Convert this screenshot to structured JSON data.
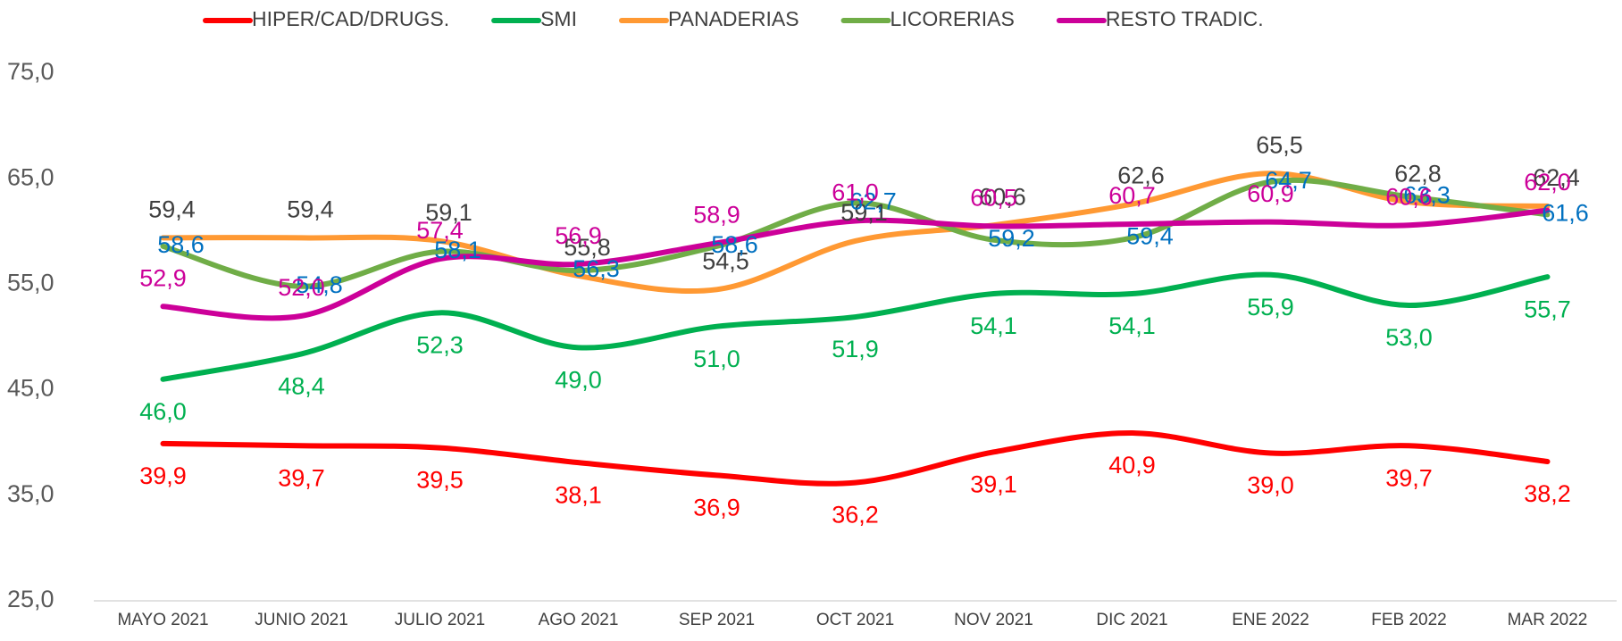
{
  "chart_data": {
    "type": "line",
    "categories": [
      "MAYO 2021",
      "JUNIO 2021",
      "JULIO 2021",
      "AGO 2021",
      "SEP 2021",
      "OCT 2021",
      "NOV 2021",
      "DIC 2021",
      "ENE 2022",
      "FEB 2022",
      "MAR 2022"
    ],
    "ylim": [
      25,
      75
    ],
    "yticks": [
      {
        "value": 25,
        "label": "25,0"
      },
      {
        "value": 35,
        "label": "35,0"
      },
      {
        "value": 45,
        "label": "45,0"
      },
      {
        "value": 55,
        "label": "55,0"
      },
      {
        "value": 65,
        "label": "65,0"
      },
      {
        "value": 75,
        "label": "75,0"
      }
    ],
    "grid": false,
    "legend": "top",
    "series": [
      {
        "name": "HIPER/CAD/DRUGS.",
        "color": "#ff0000",
        "label_color": "#ff0000",
        "values": [
          39.9,
          39.7,
          39.5,
          38.1,
          36.9,
          36.2,
          39.1,
          40.9,
          39.0,
          39.7,
          38.2
        ],
        "value_labels": [
          "39,9",
          "39,7",
          "39,5",
          "38,1",
          "36,9",
          "36,2",
          "39,1",
          "40,9",
          "39,0",
          "39,7",
          "38,2"
        ]
      },
      {
        "name": "SMI",
        "color": "#00b050",
        "label_color": "#00b050",
        "values": [
          46.0,
          48.4,
          52.3,
          49.0,
          51.0,
          51.9,
          54.1,
          54.1,
          55.9,
          53.0,
          55.7
        ],
        "value_labels": [
          "46,0",
          "48,4",
          "52,3",
          "49,0",
          "51,0",
          "51,9",
          "54,1",
          "54,1",
          "55,9",
          "53,0",
          "55,7"
        ]
      },
      {
        "name": "PANADERIAS",
        "color": "#ff9933",
        "label_color": "#404040",
        "values": [
          59.4,
          59.4,
          59.1,
          55.8,
          54.5,
          59.1,
          60.6,
          62.6,
          65.5,
          62.8,
          62.4
        ],
        "value_labels": [
          "59,4",
          "59,4",
          "59,1",
          "55,8",
          "54,5",
          "59,1",
          "60,6",
          "62,6",
          "65,5",
          "62,8",
          "62,4"
        ]
      },
      {
        "name": "LICORERIAS",
        "color": "#70ad47",
        "label_color": "#0070c0",
        "values": [
          58.6,
          54.8,
          58.1,
          56.3,
          58.6,
          62.7,
          59.2,
          59.4,
          64.7,
          63.3,
          61.6
        ],
        "value_labels": [
          "58,6",
          "54,8",
          "58,1",
          "56,3",
          "58,6",
          "62,7",
          "59,2",
          "59,4",
          "64,7",
          "63,3",
          "61,6"
        ]
      },
      {
        "name": "RESTO TRADIC.",
        "color": "#cc0099",
        "label_color": "#cc0099",
        "values": [
          52.9,
          52.0,
          57.4,
          56.9,
          58.9,
          61.0,
          60.5,
          60.7,
          60.9,
          60.6,
          62.0
        ],
        "value_labels": [
          "52,9",
          "52,0",
          "57,4",
          "56,9",
          "58,9",
          "61,0",
          "60,5",
          "60,7",
          "60,9",
          "60,6",
          "62,0"
        ]
      }
    ]
  }
}
